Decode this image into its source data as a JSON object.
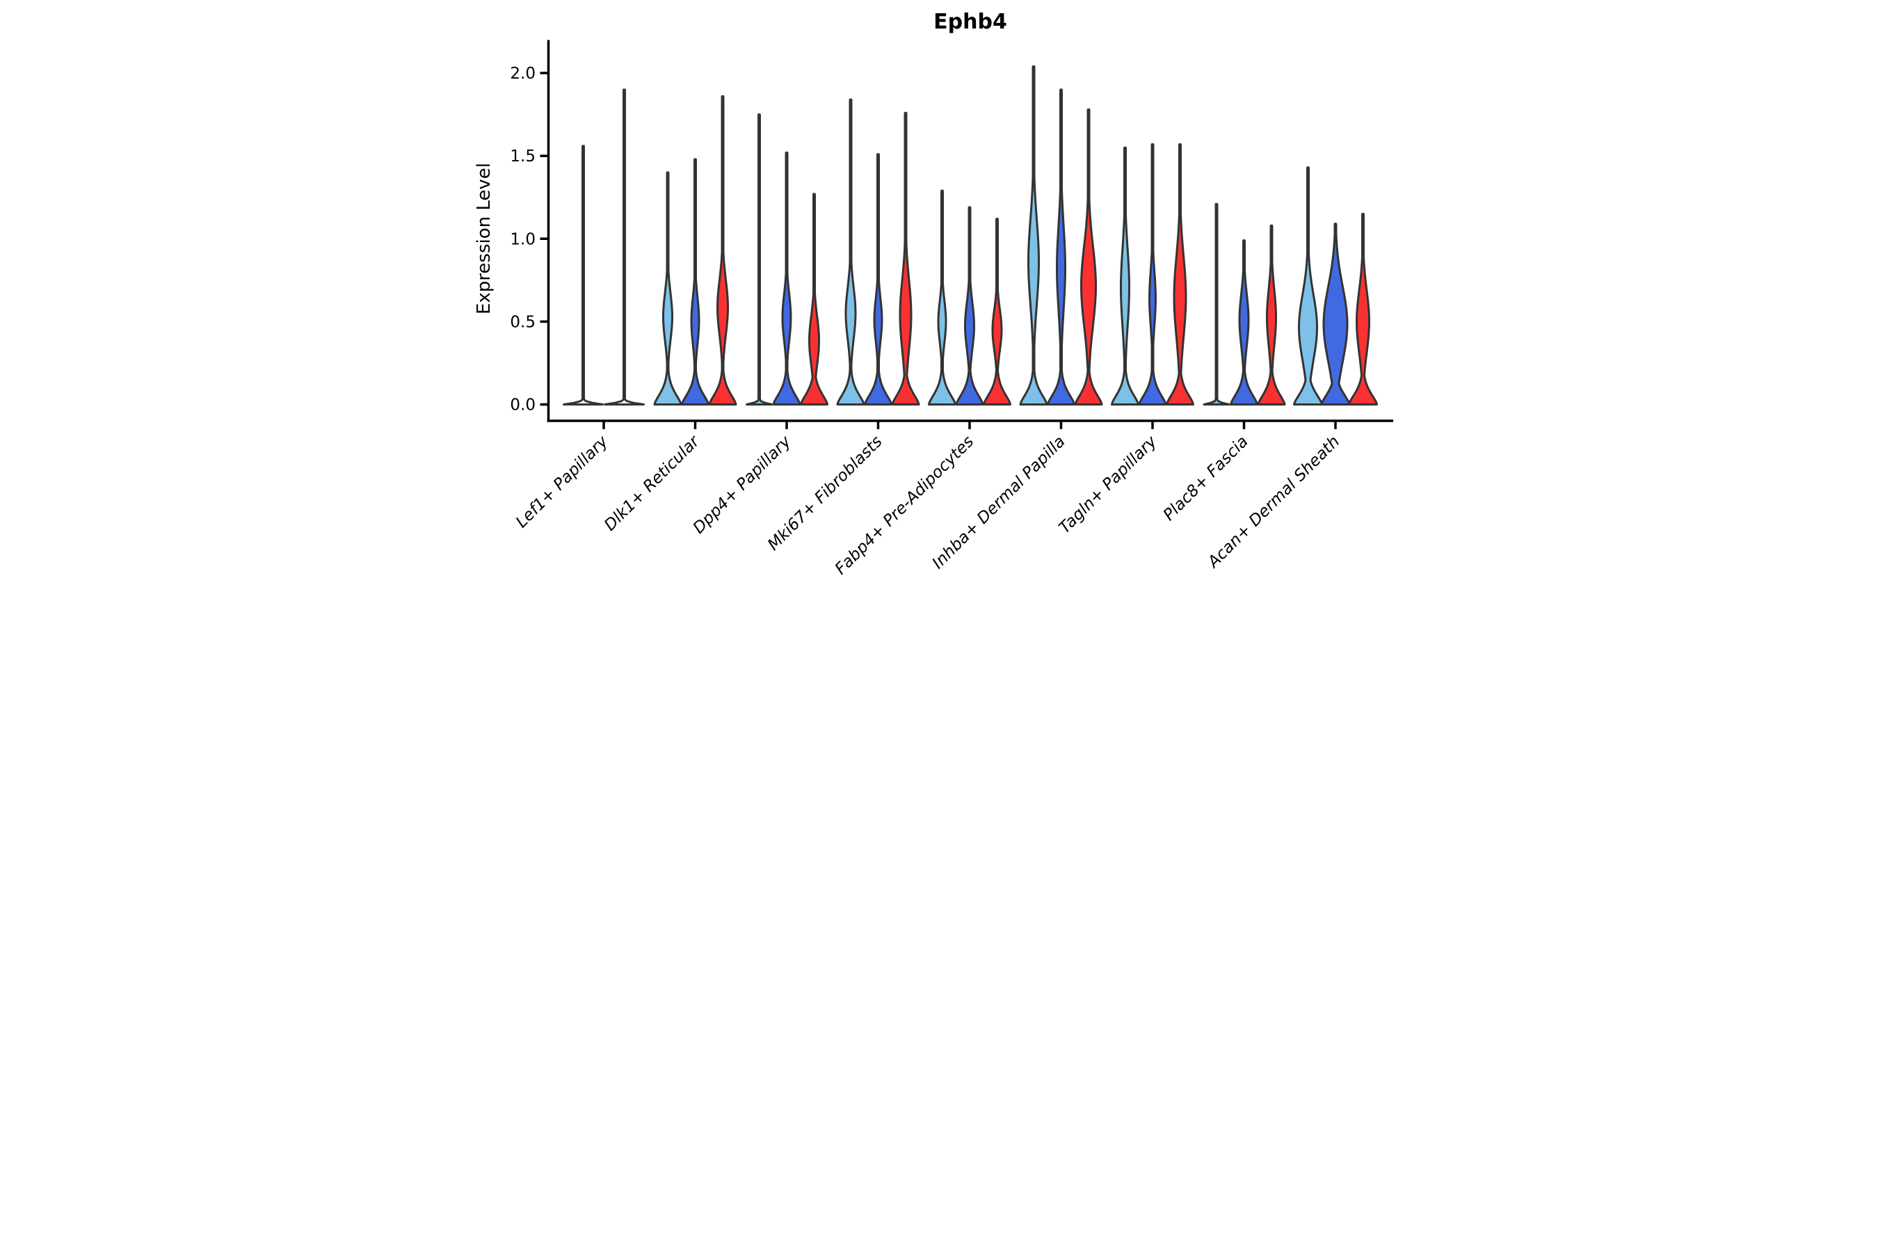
{
  "chart_data": {
    "type": "violin",
    "title": "Ephb4",
    "ylabel": "Expression Level",
    "xlabel": "",
    "ylim": [
      0,
      2.1
    ],
    "yticks": [
      0.0,
      0.5,
      1.0,
      1.5,
      2.0
    ],
    "ytick_labels": [
      "0.0",
      "0.5",
      "1.0",
      "1.5",
      "2.0"
    ],
    "grid": false,
    "legend": "none",
    "split_colors": [
      "#7EC1E8",
      "#4169E1",
      "#FA3131"
    ],
    "outline_color": "#333333",
    "categories": [
      "Lef1+ Papillary",
      "Dlk1+ Reticular",
      "Dpp4+ Papillary",
      "Mki67+ Fibroblasts",
      "Fabp4+ Pre-Adipocytes",
      "Inhba+ Dermal Papilla",
      "Tagln+ Papillary",
      "Plac8+ Fascia",
      "Acan+ Dermal Sheath"
    ],
    "groups": [
      {
        "category": "Lef1+ Papillary",
        "tick_x": 386,
        "violins": [
          {
            "split_index": null,
            "cx": 327,
            "max_expression": 1.56,
            "flat": true,
            "bulge": null,
            "base_hw": 56
          },
          {
            "split_index": null,
            "cx": 445,
            "max_expression": 1.9,
            "flat": true,
            "bulge": null,
            "base_hw": 56
          }
        ]
      },
      {
        "category": "Dlk1+ Reticular",
        "tick_x": 649,
        "violins": [
          {
            "split_index": 0,
            "cx": 570,
            "max_expression": 1.4,
            "flat": false,
            "bulge": {
              "lo": 0.3,
              "hi": 0.76,
              "hw": 13
            },
            "base_hw": 38
          },
          {
            "split_index": 1,
            "cx": 649,
            "max_expression": 1.48,
            "flat": false,
            "bulge": {
              "lo": 0.28,
              "hi": 0.73,
              "hw": 11
            },
            "base_hw": 38
          },
          {
            "split_index": 2,
            "cx": 728,
            "max_expression": 1.86,
            "flat": false,
            "bulge": {
              "lo": 0.32,
              "hi": 0.85,
              "hw": 15
            },
            "base_hw": 38
          }
        ]
      },
      {
        "category": "Dpp4+ Papillary",
        "tick_x": 912,
        "violins": [
          {
            "split_index": 0,
            "cx": 833,
            "max_expression": 1.75,
            "flat": true,
            "bulge": null,
            "base_hw": 36
          },
          {
            "split_index": 1,
            "cx": 912,
            "max_expression": 1.52,
            "flat": false,
            "bulge": {
              "lo": 0.3,
              "hi": 0.75,
              "hw": 12
            },
            "base_hw": 38
          },
          {
            "split_index": 2,
            "cx": 991,
            "max_expression": 1.27,
            "flat": false,
            "bulge": {
              "lo": 0.15,
              "hi": 0.62,
              "hw": 14
            },
            "base_hw": 38
          }
        ]
      },
      {
        "category": "Mki67+ Fibroblasts",
        "tick_x": 1175,
        "violins": [
          {
            "split_index": 0,
            "cx": 1096,
            "max_expression": 1.84,
            "flat": false,
            "bulge": {
              "lo": 0.3,
              "hi": 0.8,
              "hw": 14
            },
            "base_hw": 38
          },
          {
            "split_index": 1,
            "cx": 1175,
            "max_expression": 1.51,
            "flat": false,
            "bulge": {
              "lo": 0.3,
              "hi": 0.72,
              "hw": 11
            },
            "base_hw": 38
          },
          {
            "split_index": 2,
            "cx": 1254,
            "max_expression": 1.76,
            "flat": false,
            "bulge": {
              "lo": 0.2,
              "hi": 0.88,
              "hw": 16
            },
            "base_hw": 38
          }
        ]
      },
      {
        "category": "Fabp4+ Pre-Adipocytes",
        "tick_x": 1438,
        "violins": [
          {
            "split_index": 0,
            "cx": 1359,
            "max_expression": 1.29,
            "flat": false,
            "bulge": {
              "lo": 0.3,
              "hi": 0.7,
              "hw": 11
            },
            "base_hw": 38
          },
          {
            "split_index": 1,
            "cx": 1438,
            "max_expression": 1.19,
            "flat": false,
            "bulge": {
              "lo": 0.25,
              "hi": 0.7,
              "hw": 13
            },
            "base_hw": 38
          },
          {
            "split_index": 2,
            "cx": 1517,
            "max_expression": 1.12,
            "flat": false,
            "bulge": {
              "lo": 0.25,
              "hi": 0.65,
              "hw": 13
            },
            "base_hw": 38
          }
        ]
      },
      {
        "category": "Inhba+ Dermal Papilla",
        "tick_x": 1701,
        "violins": [
          {
            "split_index": 0,
            "cx": 1622,
            "max_expression": 2.04,
            "flat": false,
            "bulge": {
              "lo": 0.45,
              "hi": 1.27,
              "hw": 15
            },
            "base_hw": 38
          },
          {
            "split_index": 1,
            "cx": 1701,
            "max_expression": 1.9,
            "flat": false,
            "bulge": {
              "lo": 0.42,
              "hi": 1.23,
              "hw": 12
            },
            "base_hw": 38
          },
          {
            "split_index": 2,
            "cx": 1780,
            "max_expression": 1.78,
            "flat": false,
            "bulge": {
              "lo": 0.33,
              "hi": 1.1,
              "hw": 21
            },
            "base_hw": 38
          }
        ]
      },
      {
        "category": "Tagln+ Papillary",
        "tick_x": 1964,
        "violins": [
          {
            "split_index": 0,
            "cx": 1885,
            "max_expression": 1.55,
            "flat": false,
            "bulge": {
              "lo": 0.33,
              "hi": 1.08,
              "hw": 12
            },
            "base_hw": 38
          },
          {
            "split_index": 1,
            "cx": 1964,
            "max_expression": 1.57,
            "flat": false,
            "bulge": {
              "lo": 0.38,
              "hi": 0.9,
              "hw": 9
            },
            "base_hw": 38
          },
          {
            "split_index": 2,
            "cx": 2043,
            "max_expression": 1.57,
            "flat": false,
            "bulge": {
              "lo": 0.26,
              "hi": 1.04,
              "hw": 17
            },
            "base_hw": 38
          }
        ]
      },
      {
        "category": "Plac8+ Fascia",
        "tick_x": 2227,
        "violins": [
          {
            "split_index": 0,
            "cx": 2148,
            "max_expression": 1.21,
            "flat": true,
            "bulge": null,
            "base_hw": 36
          },
          {
            "split_index": 1,
            "cx": 2227,
            "max_expression": 0.99,
            "flat": false,
            "bulge": {
              "lo": 0.26,
              "hi": 0.76,
              "hw": 13
            },
            "base_hw": 38
          },
          {
            "split_index": 2,
            "cx": 2306,
            "max_expression": 1.08,
            "flat": false,
            "bulge": {
              "lo": 0.25,
              "hi": 0.8,
              "hw": 13
            },
            "base_hw": 38
          }
        ]
      },
      {
        "category": "Acan+ Dermal Sheath",
        "tick_x": 2490,
        "violins": [
          {
            "split_index": 0,
            "cx": 2411,
            "max_expression": 1.43,
            "flat": false,
            "bulge": {
              "lo": 0.15,
              "hi": 0.78,
              "hw": 26
            },
            "base_hw": 40
          },
          {
            "split_index": 1,
            "cx": 2490,
            "max_expression": 1.09,
            "flat": false,
            "bulge": {
              "lo": 0.12,
              "hi": 0.85,
              "hw": 34
            },
            "base_hw": 40
          },
          {
            "split_index": 2,
            "cx": 2569,
            "max_expression": 1.15,
            "flat": false,
            "bulge": {
              "lo": 0.2,
              "hi": 0.8,
              "hw": 18
            },
            "base_hw": 40
          }
        ]
      }
    ]
  }
}
